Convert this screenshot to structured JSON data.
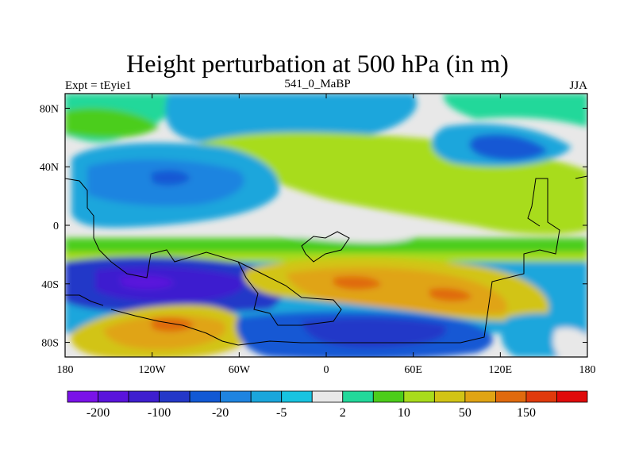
{
  "title": "Height perturbation at 500 hPa (in m)",
  "left_string": "Expt = tEyie1",
  "center_string": "541_0_MaBP",
  "right_string": "JJA",
  "x_ticks": [
    "180",
    "120W",
    "60W",
    "0",
    "60E",
    "120E",
    "180"
  ],
  "y_ticks": [
    "80N",
    "40N",
    "0",
    "40S",
    "80S"
  ],
  "y_tick_values": [
    80,
    40,
    0,
    -40,
    -80
  ],
  "x_tick_values": [
    -180,
    -120,
    -60,
    0,
    60,
    120,
    180
  ],
  "colorbar": {
    "colors": [
      "#7a12e8",
      "#5a14dc",
      "#3e1fcf",
      "#2438c8",
      "#1259d4",
      "#1f84e0",
      "#1aa6dc",
      "#18c3e0",
      "#e8e8e8",
      "#22d89a",
      "#4ccd1a",
      "#a8dc1c",
      "#d2c416",
      "#e0a414",
      "#e06a0e",
      "#e03a0c",
      "#e00a0a"
    ],
    "labels": [
      "-200",
      "-100",
      "-20",
      "-5",
      "2",
      "10",
      "50",
      "150"
    ]
  }
}
